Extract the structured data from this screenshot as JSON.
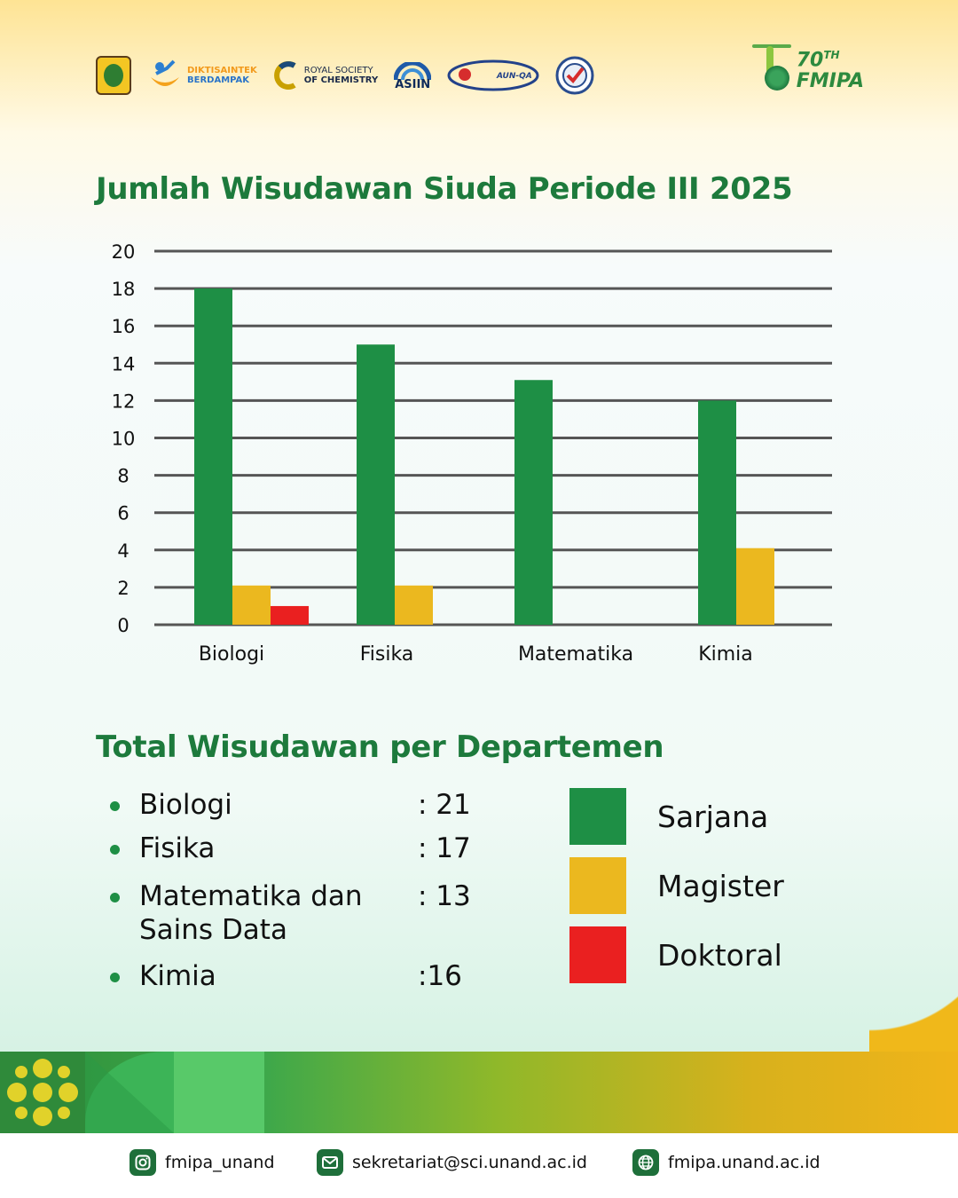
{
  "header": {
    "logos": [
      {
        "name": "regional-seal-logo",
        "text": ""
      },
      {
        "name": "diktisaintek-logo",
        "line1": "DIKTISAINTEK",
        "line2": "BERDAMPAK"
      },
      {
        "name": "royal-society-chemistry-logo",
        "line1": "ROYAL SOCIETY",
        "line2": "OF CHEMISTRY"
      },
      {
        "name": "asiin-logo",
        "line1": "ASIIN"
      },
      {
        "name": "aun-qa-logo",
        "line1": "AUN-QA"
      },
      {
        "name": "quality-check-logo",
        "text": ""
      }
    ],
    "anniversary": {
      "number": "70",
      "suffix": "TH",
      "name": "FMIPA"
    }
  },
  "chart_title": "Jumlah Wisudawan Siuda Periode III 2025",
  "chart_data": {
    "type": "bar",
    "title": "Jumlah Wisudawan Siuda Periode III 2025",
    "categories": [
      "Biologi",
      "Fisika",
      "Matematika",
      "Kimia"
    ],
    "series": [
      {
        "name": "Sarjana",
        "values": [
          18,
          15,
          13.1,
          12
        ],
        "color": "#1e8f45"
      },
      {
        "name": "Magister",
        "values": [
          2.1,
          2.1,
          0,
          4.1
        ],
        "color": "#ebb81f"
      },
      {
        "name": "Doktoral",
        "values": [
          1,
          0,
          0,
          0
        ],
        "color": "#ea2020"
      }
    ],
    "ylim": [
      0,
      20
    ],
    "yticks": [
      0,
      2,
      4,
      6,
      8,
      10,
      12,
      14,
      16,
      18,
      20
    ],
    "grid": true,
    "xlabel": "",
    "ylabel": ""
  },
  "summary": {
    "title": "Total Wisudawan per Departemen",
    "rows": [
      {
        "name": "Biologi",
        "value": ": 21"
      },
      {
        "name": "Fisika",
        "value": ": 17"
      },
      {
        "name": "Matematika dan Sains Data",
        "value": ": 13"
      },
      {
        "name": "Kimia",
        "value": ":16"
      }
    ]
  },
  "legend": [
    {
      "label": "Sarjana",
      "color": "#1e8f45"
    },
    {
      "label": "Magister",
      "color": "#ebb81f"
    },
    {
      "label": "Doktoral",
      "color": "#ea2020"
    }
  ],
  "footer": {
    "instagram": "fmipa_unand",
    "email": "sekretariat@sci.unand.ac.id",
    "website": "fmipa.unand.ac.id"
  }
}
